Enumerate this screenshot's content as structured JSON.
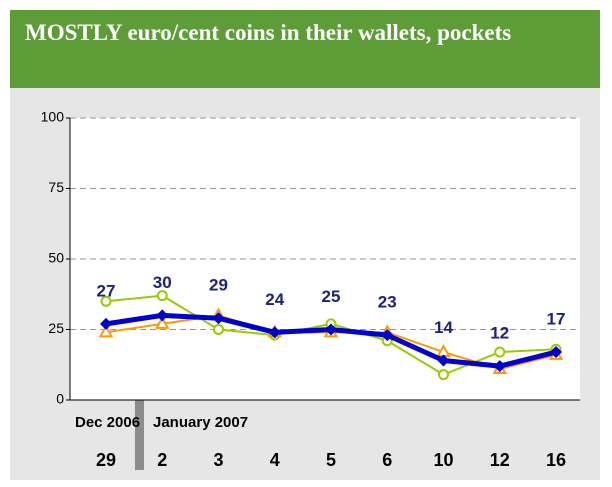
{
  "chart_data": {
    "type": "line",
    "title": "MOSTLY euro/cent coins in their wallets, pockets",
    "groups": [
      {
        "label": "Dec 2006"
      },
      {
        "label": "January 2007"
      }
    ],
    "categories": [
      "29",
      "2",
      "3",
      "4",
      "5",
      "6",
      "10",
      "12",
      "16"
    ],
    "series": [
      {
        "color": "#0000cc",
        "values": [
          27,
          30,
          29,
          24,
          25,
          23,
          14,
          12,
          17
        ]
      },
      {
        "color": "#99cc00",
        "values": [
          35,
          37,
          25,
          23,
          27,
          21,
          9,
          17,
          18
        ]
      },
      {
        "color": "#ff9900",
        "values": [
          24,
          27,
          30,
          24,
          24,
          24,
          17,
          11,
          16
        ]
      }
    ],
    "ylim": [
      0,
      100
    ],
    "yticks": [
      0,
      25,
      50,
      75,
      100
    ],
    "grid": true
  }
}
